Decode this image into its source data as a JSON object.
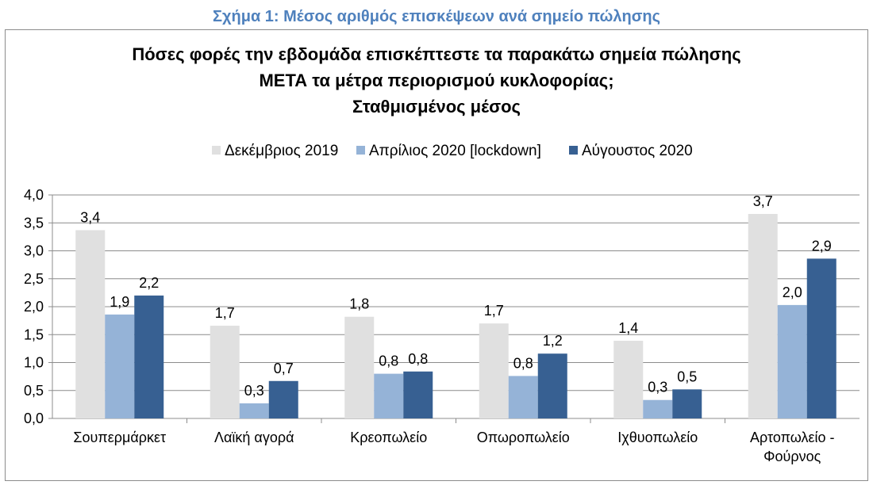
{
  "figure_caption": "Σχήμα 1: Μέσος αριθμός επισκέψεων ανά σημείο πώλησης",
  "chart_data": {
    "type": "bar",
    "title_lines": [
      "Πόσες φορές την εβδομάδα επισκέπτεστε τα παρακάτω σημεία πώλησης",
      "ΜΕΤΑ τα μέτρα περιορισμού κυκλοφορίας;",
      "Σταθμισμένος μέσος"
    ],
    "categories": [
      [
        "Σουπερμάρκετ"
      ],
      [
        "Λαϊκή αγορά"
      ],
      [
        "Κρεοπωλείο"
      ],
      [
        "Οπωροπωλείο"
      ],
      [
        "Ιχθυοπωλείο"
      ],
      [
        "Αρτοπωλείο -",
        "Φούρνος"
      ]
    ],
    "series": [
      {
        "name": "Δεκέμβριος 2019",
        "color": "#e0e0e0",
        "values": [
          3.37,
          1.66,
          1.82,
          1.7,
          1.39,
          3.66
        ],
        "labels": [
          "3,4",
          "1,7",
          "1,8",
          "1,7",
          "1,4",
          "3,7"
        ]
      },
      {
        "name": "Απρίλιος 2020 [lockdown]",
        "color": "#95b3d7",
        "values": [
          1.86,
          0.27,
          0.8,
          0.76,
          0.33,
          2.03
        ],
        "labels": [
          "1,9",
          "0,3",
          "0,8",
          "0,8",
          "0,3",
          "2,0"
        ]
      },
      {
        "name": "Αύγουστος 2020",
        "color": "#376092",
        "values": [
          2.2,
          0.67,
          0.84,
          1.16,
          0.52,
          2.86
        ],
        "labels": [
          "2,2",
          "0,7",
          "0,8",
          "1,2",
          "0,5",
          "2,9"
        ]
      }
    ],
    "y_ticks": [
      {
        "value": 0.0,
        "label": "0,0"
      },
      {
        "value": 0.5,
        "label": "0,5"
      },
      {
        "value": 1.0,
        "label": "1,0"
      },
      {
        "value": 1.5,
        "label": "1,5"
      },
      {
        "value": 2.0,
        "label": "2,0"
      },
      {
        "value": 2.5,
        "label": "2,5"
      },
      {
        "value": 3.0,
        "label": "3,0"
      },
      {
        "value": 3.5,
        "label": "3,5"
      },
      {
        "value": 4.0,
        "label": "4,0"
      }
    ],
    "ylim": [
      0,
      4
    ],
    "grid": true,
    "legend_position": "top"
  }
}
